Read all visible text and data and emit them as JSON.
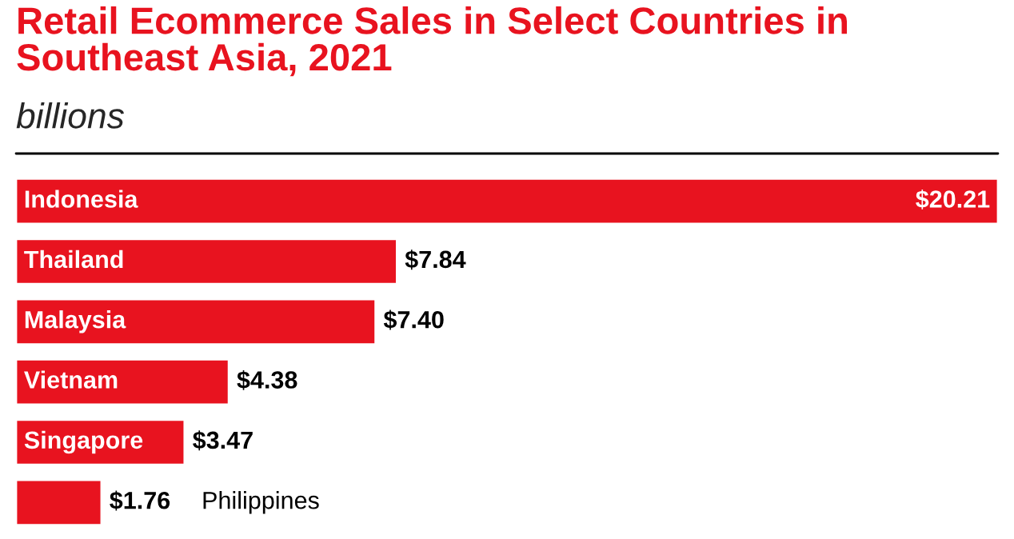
{
  "chart_data": {
    "type": "bar",
    "orientation": "horizontal",
    "title": "Retail Ecommerce Sales in Select Countries in\nSoutheast Asia, 2021",
    "subtitle": "billions",
    "categories": [
      "Indonesia",
      "Thailand",
      "Malaysia",
      "Vietnam",
      "Singapore",
      "Philippines"
    ],
    "values": [
      20.21,
      7.84,
      7.4,
      4.38,
      3.47,
      1.76
    ],
    "value_labels": [
      "$20.21",
      "$7.84",
      "$7.40",
      "$4.38",
      "$3.47",
      "$1.76"
    ],
    "color": "#e8131f"
  }
}
